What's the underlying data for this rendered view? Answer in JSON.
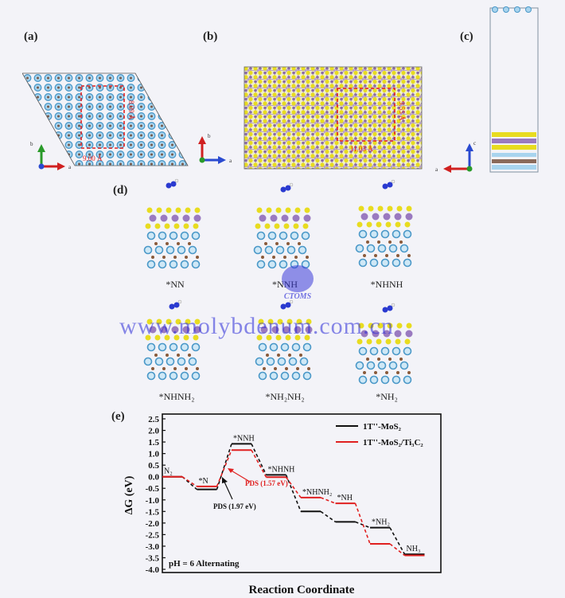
{
  "panels": {
    "a": "(a)",
    "b": "(b)",
    "c": "(c)",
    "d": "(d)",
    "e": "(e)"
  },
  "dimensions": {
    "a_vertical": "8.09 Å",
    "a_horizontal": "9.00 Å",
    "b_vertical": "9.55 Å",
    "b_horizontal": "11.03 Å"
  },
  "structures": [
    {
      "key": "nn",
      "label": "*NN"
    },
    {
      "key": "nnh",
      "label": "*NNH"
    },
    {
      "key": "nhnh",
      "label": "*NHNH"
    },
    {
      "key": "nhnh2",
      "label": "*NHNH₂"
    },
    {
      "key": "nh2nh2",
      "label": "*NH₂NH₂"
    },
    {
      "key": "nh2",
      "label": "*NH₂"
    }
  ],
  "watermark": {
    "text": "www.molybdenum.com.cn",
    "logo": "CTOMS"
  },
  "chart_data": {
    "type": "line",
    "title": "",
    "xlabel": "Reaction Coordinate",
    "ylabel": "ΔG (eV)",
    "ylim": [
      -4.0,
      2.5
    ],
    "yticks": [
      "2.5",
      "2.0",
      "1.5",
      "1.0",
      "0.5",
      "0.0",
      "-0.5",
      "-1.0",
      "-1.5",
      "-2.0",
      "-2.5",
      "-3.0",
      "-3.5",
      "-4.0"
    ],
    "states": [
      "N₂",
      "*N",
      "*NNH",
      "*NHNH",
      "*NHNH₂",
      "*NH",
      "*NH₂",
      "NH₃"
    ],
    "series": [
      {
        "name": "1T''-MoS₂",
        "color": "#111111",
        "values": [
          0.0,
          -0.55,
          1.42,
          0.08,
          -1.5,
          -1.95,
          -2.2,
          -3.35
        ]
      },
      {
        "name": "1T''-MoS₂/Ti₃C₂",
        "color": "#e02020",
        "values": [
          0.0,
          -0.42,
          1.15,
          -0.02,
          -0.9,
          -1.15,
          -2.9,
          -3.4
        ]
      }
    ],
    "annotations": [
      {
        "text": "PDS (1.57 eV)",
        "color": "#e02020"
      },
      {
        "text": "PDS (1.97 eV)",
        "color": "#111111"
      },
      {
        "text": "pH = 6  Alternating",
        "color": "#111111"
      }
    ],
    "legend_position": "top-right",
    "grid": false
  }
}
